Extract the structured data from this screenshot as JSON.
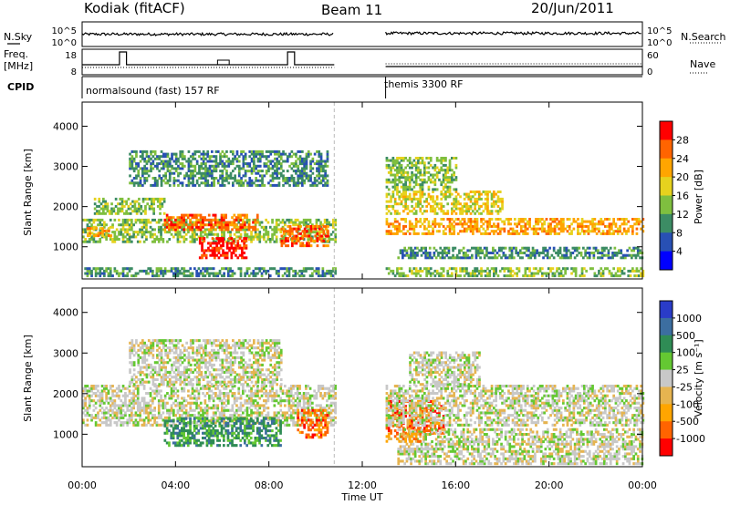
{
  "header": {
    "radar": "Kodiak (fitACF)",
    "beam": "Beam 11",
    "date": "20/Jun/2011"
  },
  "params": {
    "nsky_label": "N.Sky",
    "nsearch_label": "N.Search",
    "freq_label_1": "Freq.",
    "freq_label_2": "[MHz]",
    "nave_label": "Nave",
    "cpid_label": "CPID",
    "nsky_ticks": [
      "10^5",
      "10^0"
    ],
    "nsearch_ticks": [
      "10^5",
      "10^0"
    ],
    "freq_ticks": [
      "18",
      "8"
    ],
    "nave_ticks": [
      "60",
      "0"
    ],
    "cpid_segments": [
      {
        "label": "normalsound (fast) 157 RF",
        "start_h": 0.0,
        "end_h": 10.8
      },
      {
        "label": "themis 3300 RF",
        "start_h": 13.0,
        "end_h": 24.0
      }
    ],
    "data_gap_h": [
      10.8,
      13.0
    ]
  },
  "xaxis": {
    "label": "Time UT",
    "range_h": [
      0,
      24
    ],
    "ticks": [
      {
        "h": 0,
        "label": "00:00"
      },
      {
        "h": 4,
        "label": "04:00"
      },
      {
        "h": 8,
        "label": "08:00"
      },
      {
        "h": 12,
        "label": "12:00"
      },
      {
        "h": 16,
        "label": "16:00"
      },
      {
        "h": 20,
        "label": "20:00"
      },
      {
        "h": 24,
        "label": "00:00"
      }
    ]
  },
  "chart_data": [
    {
      "type": "heatmap",
      "title": "",
      "ylabel": "Slant Range [km]",
      "xlabel": "",
      "ylim": [
        200,
        4600
      ],
      "yticks": [
        "1000",
        "2000",
        "3000",
        "4000"
      ],
      "colorbar": {
        "label": "Power [dB]",
        "ticks": [
          "28",
          "24",
          "20",
          "16",
          "12",
          "8",
          "4"
        ],
        "colors": [
          "#0000ff",
          "#2850b4",
          "#3c8c64",
          "#7fbf3f",
          "#e6d21e",
          "#ffa500",
          "#ff6400",
          "#ff0000"
        ]
      },
      "regions": [
        {
          "t0": 0.0,
          "t1": 10.8,
          "r0": 250,
          "r1": 450,
          "level": 2
        },
        {
          "t0": 0.0,
          "t1": 10.8,
          "r0": 1100,
          "r1": 1700,
          "level": 3
        },
        {
          "t0": 0.2,
          "t1": 1.2,
          "r0": 1250,
          "r1": 1450,
          "level": 5
        },
        {
          "t0": 0.5,
          "t1": 3.5,
          "r0": 1800,
          "r1": 2200,
          "level": 3
        },
        {
          "t0": 3.5,
          "t1": 7.5,
          "r0": 1400,
          "r1": 1800,
          "level": 6
        },
        {
          "t0": 5.0,
          "t1": 7.0,
          "r0": 700,
          "r1": 1200,
          "level": 7
        },
        {
          "t0": 8.5,
          "t1": 10.5,
          "r0": 1000,
          "r1": 1500,
          "level": 6
        },
        {
          "t0": 2.0,
          "t1": 10.5,
          "r0": 2500,
          "r1": 3400,
          "level": 2
        },
        {
          "t0": 13.0,
          "t1": 24.0,
          "r0": 250,
          "r1": 450,
          "level": 3
        },
        {
          "t0": 13.0,
          "t1": 24.0,
          "r0": 1300,
          "r1": 1700,
          "level": 5
        },
        {
          "t0": 13.0,
          "t1": 18.0,
          "r0": 1800,
          "r1": 2400,
          "level": 4
        },
        {
          "t0": 13.0,
          "t1": 16.0,
          "r0": 2400,
          "r1": 3200,
          "level": 3
        },
        {
          "t0": 13.5,
          "t1": 24.0,
          "r0": 700,
          "r1": 1000,
          "level": 2
        }
      ]
    },
    {
      "type": "heatmap",
      "title": "",
      "ylabel": "Slant Range [km]",
      "xlabel": "Time UT",
      "ylim": [
        200,
        4600
      ],
      "yticks": [
        "1000",
        "2000",
        "3000",
        "4000"
      ],
      "colorbar": {
        "label": "Velocity [m s⁻¹]",
        "ticks": [
          "1000",
          "500",
          "100",
          "25",
          "-25",
          "-100",
          "-500",
          "-1000"
        ],
        "colors": [
          "#ff0000",
          "#ff6400",
          "#ffa500",
          "#e6b450",
          "#c8c8c8",
          "#64c832",
          "#2f8c55",
          "#3c6ea0",
          "#2a3cc8"
        ]
      },
      "regions": [
        {
          "t0": 0.0,
          "t1": 10.8,
          "r0": 1200,
          "r1": 2200,
          "level": 4
        },
        {
          "t0": 2.0,
          "t1": 8.5,
          "r0": 2200,
          "r1": 3300,
          "level": 4
        },
        {
          "t0": 3.5,
          "t1": 8.5,
          "r0": 700,
          "r1": 1400,
          "level": 6
        },
        {
          "t0": 9.2,
          "t1": 10.5,
          "r0": 900,
          "r1": 1600,
          "level": 1
        },
        {
          "t0": 13.0,
          "t1": 15.5,
          "r0": 1000,
          "r1": 1800,
          "level": 1
        },
        {
          "t0": 13.0,
          "t1": 24.0,
          "r0": 1200,
          "r1": 2200,
          "level": 4
        },
        {
          "t0": 14.0,
          "t1": 17.0,
          "r0": 2200,
          "r1": 3000,
          "level": 4
        },
        {
          "t0": 13.5,
          "t1": 24.0,
          "r0": 250,
          "r1": 1100,
          "level": 4
        },
        {
          "t0": 13.0,
          "t1": 14.5,
          "r0": 800,
          "r1": 1000,
          "level": 2
        }
      ]
    }
  ]
}
